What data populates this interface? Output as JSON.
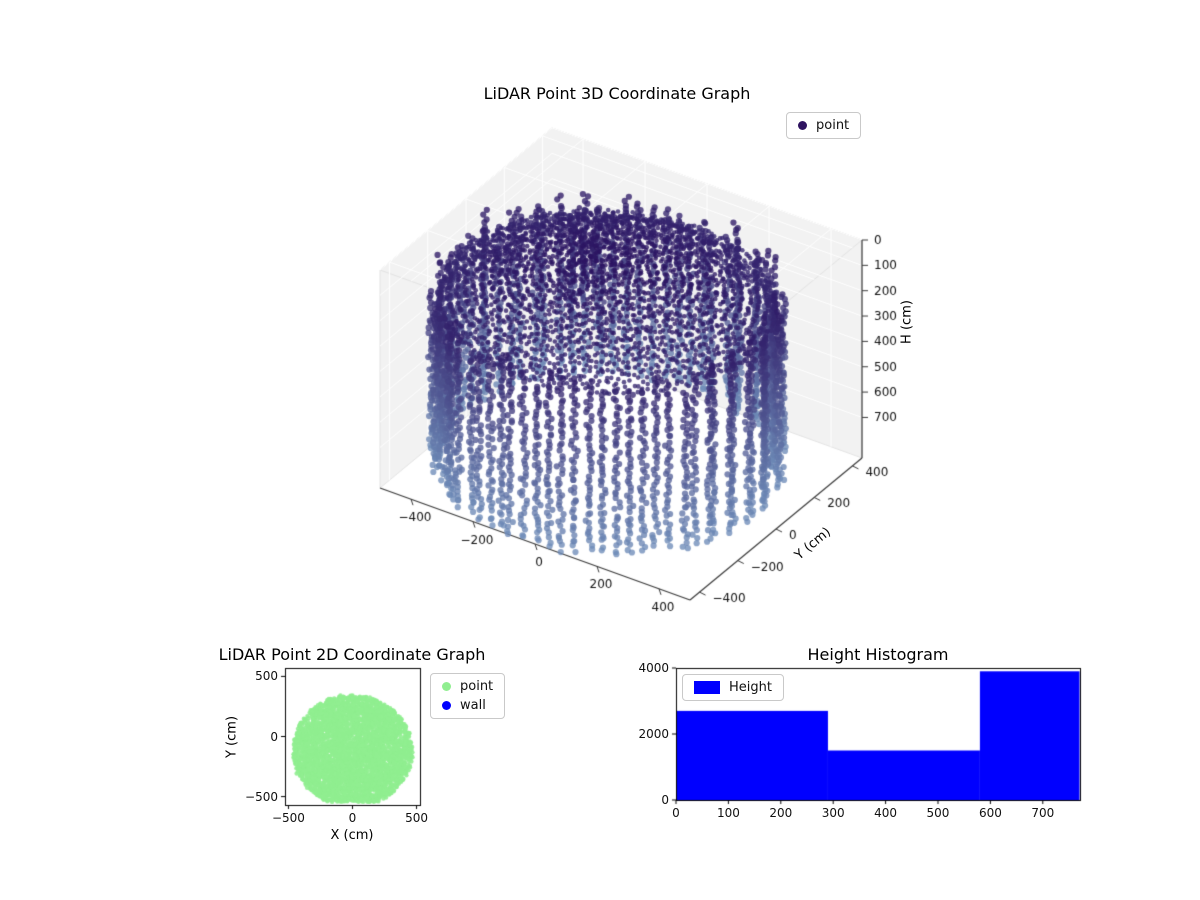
{
  "page": {
    "background": "#ffffff"
  },
  "chart_data": [
    {
      "id": "lidar-3d",
      "type": "scatter3d",
      "title": "LiDAR Point 3D Coordinate Graph",
      "legend": [
        {
          "label": "point",
          "color": "#2e1360"
        }
      ],
      "axes": {
        "x": {
          "label": "",
          "ticks": [
            -400,
            -200,
            0,
            200,
            400
          ],
          "range": [
            -500,
            500
          ]
        },
        "y": {
          "label": "Y (cm)",
          "ticks": [
            -400,
            -200,
            0,
            200,
            400
          ],
          "range": [
            -450,
            450
          ]
        },
        "z": {
          "label": "H (cm)",
          "ticks": [
            0,
            100,
            200,
            300,
            400,
            500,
            600,
            700
          ],
          "range": [
            0,
            860
          ],
          "inverted": true
        }
      },
      "colormap": {
        "by": "height",
        "start": "#2a1160",
        "end": "#6e8cb8"
      },
      "point_cloud": {
        "shape": "cylindrical-room-scan",
        "radius_cm": 475,
        "center_xy": [
          0,
          -70
        ],
        "height_range_cm": [
          0,
          770
        ],
        "wall_columns": 78,
        "points_per_column": 45,
        "ceiling_rings": 20,
        "noise_columns": 16
      },
      "pane_color": "#f2f2f2",
      "grid_color": "#ffffff"
    },
    {
      "id": "lidar-2d",
      "type": "scatter",
      "title": "LiDAR Point 2D Coordinate Graph",
      "xlabel": "X (cm)",
      "ylabel": "Y (cm)",
      "xticks": [
        -500,
        0,
        500
      ],
      "yticks": [
        -500,
        0,
        500
      ],
      "xlim": [
        -527,
        527
      ],
      "ylim": [
        -570,
        570
      ],
      "legend": [
        {
          "label": "point",
          "color": "#90ee90"
        },
        {
          "label": "wall",
          "color": "#0000ff"
        }
      ],
      "blob": {
        "description": "dense lightgreen point scatter filling room footprint",
        "center": [
          0,
          -120
        ],
        "radius_cm": 465,
        "clip_y_min": -545,
        "color": "#90ee90",
        "points": 3800
      }
    },
    {
      "id": "height-histogram",
      "type": "histogram",
      "title": "Height Histogram",
      "legend": [
        {
          "label": "Height",
          "color": "#0000ff"
        }
      ],
      "bar_color": "#0000ff",
      "bins": [
        {
          "from": 0,
          "to": 290,
          "count": 2700
        },
        {
          "from": 290,
          "to": 580,
          "count": 1500
        },
        {
          "from": 580,
          "to": 770,
          "count": 3900
        }
      ],
      "xticks": [
        0,
        100,
        200,
        300,
        400,
        500,
        600,
        700
      ],
      "yticks": [
        0,
        2000,
        4000
      ],
      "xlim": [
        0,
        771
      ],
      "ylim": [
        0,
        4000
      ]
    }
  ]
}
